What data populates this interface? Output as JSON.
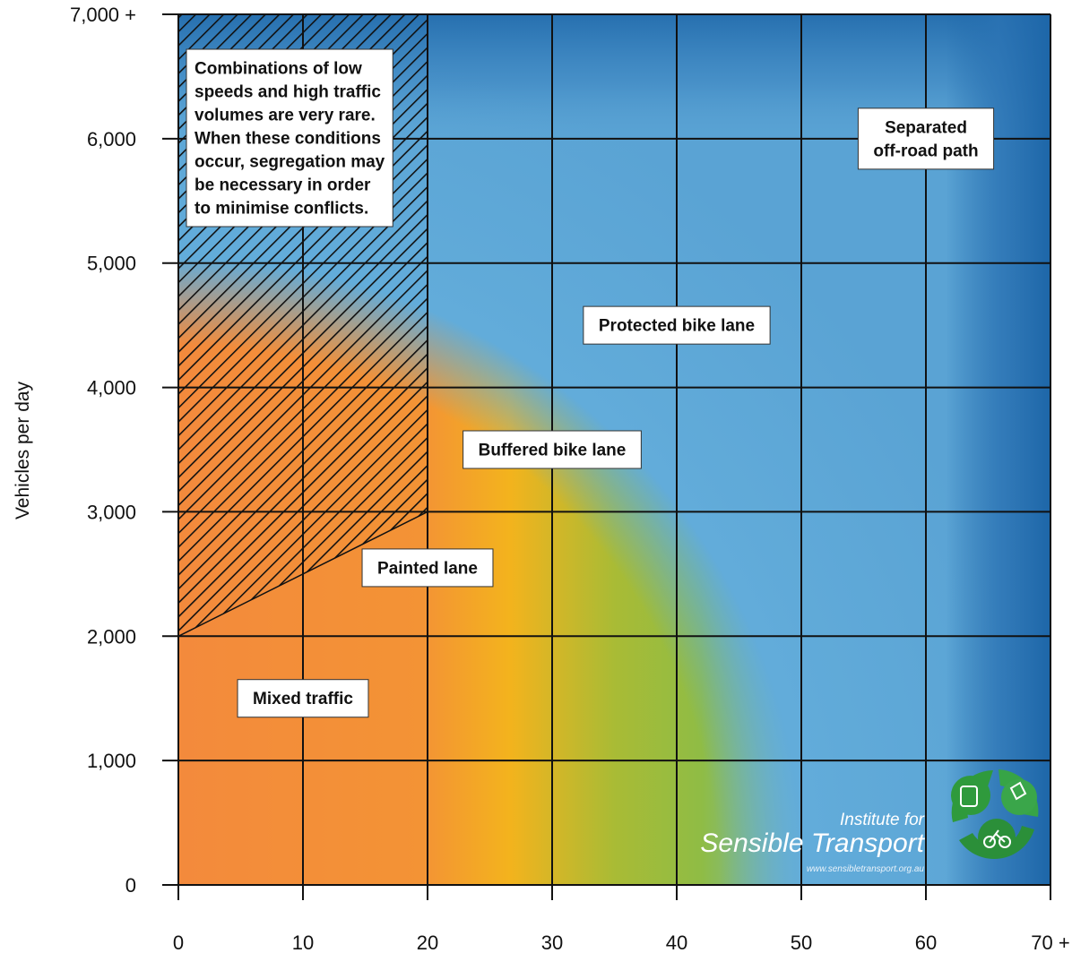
{
  "chart_data": {
    "type": "heatmap",
    "title": "",
    "xlabel": "",
    "ylabel": "Vehicles per day",
    "xlim": [
      0,
      70
    ],
    "ylim": [
      0,
      7000
    ],
    "x_ticks": [
      {
        "value": 0,
        "label": "0"
      },
      {
        "value": 10,
        "label": "10"
      },
      {
        "value": 20,
        "label": "20"
      },
      {
        "value": 30,
        "label": "30"
      },
      {
        "value": 40,
        "label": "40"
      },
      {
        "value": 50,
        "label": "50"
      },
      {
        "value": 60,
        "label": "60"
      },
      {
        "value": 70,
        "label": "70 +"
      }
    ],
    "y_ticks": [
      {
        "value": 0,
        "label": "0"
      },
      {
        "value": 1000,
        "label": "1,000"
      },
      {
        "value": 2000,
        "label": "2,000"
      },
      {
        "value": 3000,
        "label": "3,000"
      },
      {
        "value": 4000,
        "label": "4,000"
      },
      {
        "value": 5000,
        "label": "5,000"
      },
      {
        "value": 6000,
        "label": "6,000"
      },
      {
        "value": 7000,
        "label": "7,000 +"
      }
    ],
    "grid": true,
    "zone_colors": {
      "mixed_traffic": "#f38a3c",
      "painted_lane": "#f3b31d",
      "buffered_bike_lane": "#95bc3c",
      "protected_bike_lane": "#62acda",
      "separated_path": "#1d66a8"
    },
    "zones": [
      {
        "label": "Mixed traffic",
        "x": 10,
        "y": 1500
      },
      {
        "label": "Painted lane",
        "x": 20,
        "y": 2550
      },
      {
        "label": "Buffered bike lane",
        "x": 30,
        "y": 3500
      },
      {
        "label": "Protected bike lane",
        "x": 40,
        "y": 4500
      },
      {
        "label": "Separated\noff-road path",
        "x": 60,
        "y": 6000
      }
    ],
    "hatched_region": {
      "polygon": [
        [
          0,
          2000
        ],
        [
          20,
          3000
        ],
        [
          20,
          7000
        ],
        [
          0,
          7000
        ]
      ],
      "note": "Combinations of low\nspeeds and high traffic\nvolumes are very rare.\nWhen these conditions\noccur, segregation may\nbe necessary in order\nto minimise conflicts."
    }
  },
  "logo": {
    "line1": "Institute for",
    "line2": "Sensible Transport",
    "url": "www.sensibletransport.org.au",
    "green": "#2f9a3c"
  }
}
